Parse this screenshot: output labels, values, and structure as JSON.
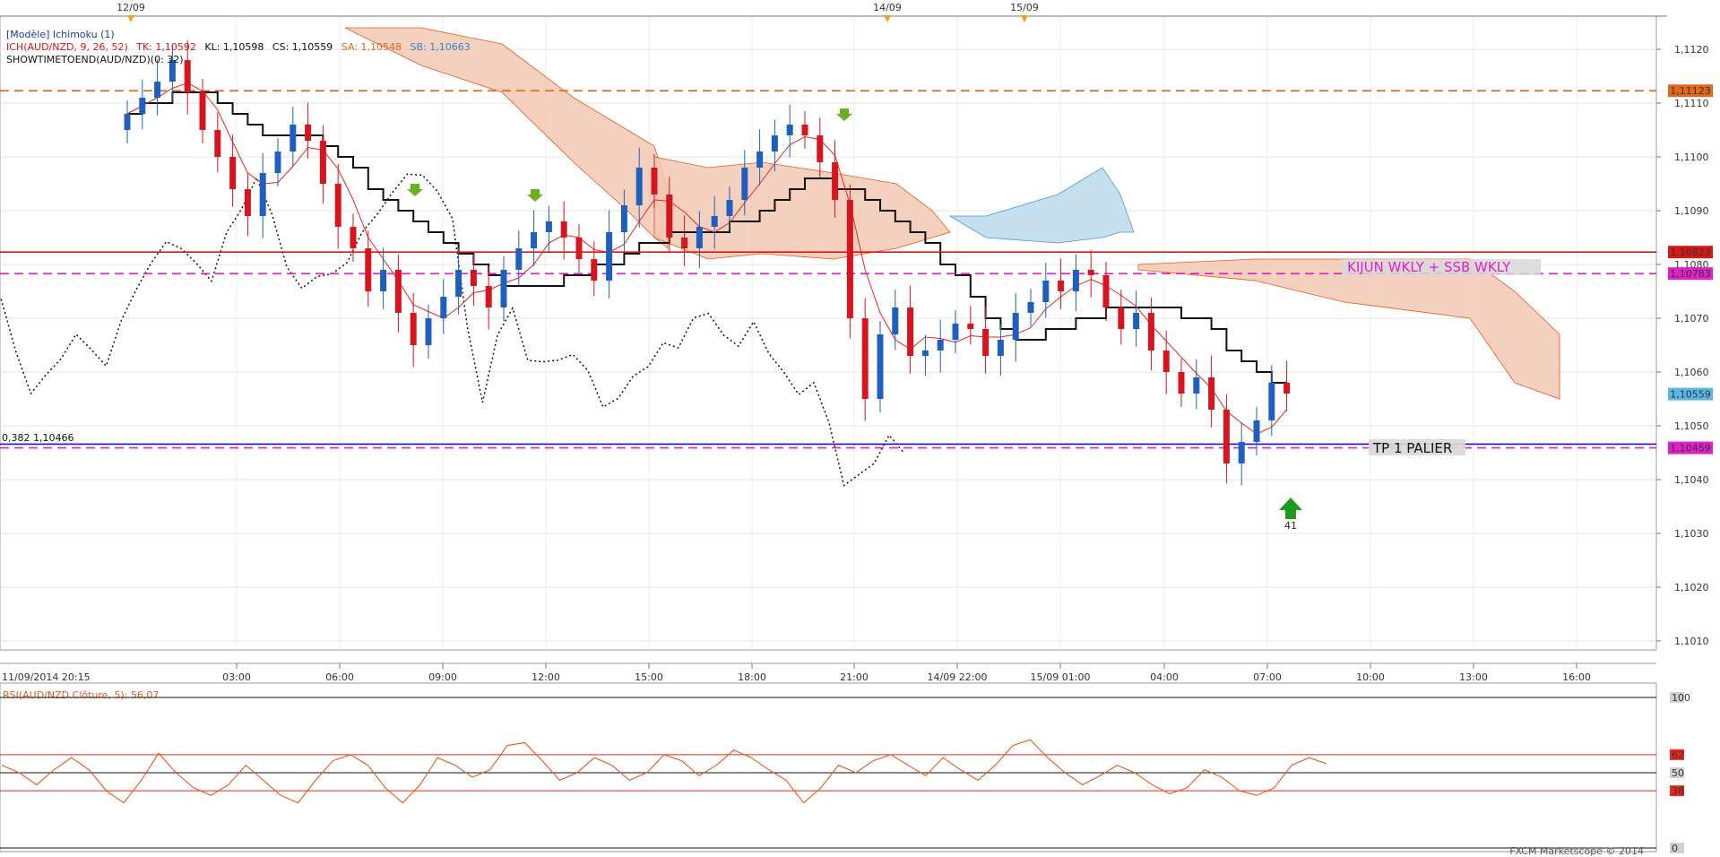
{
  "header": {
    "model": "[Modèle] Ichimoku (1)",
    "ich_line1": "ICH(AUD/NZD, 9, 26, 52)",
    "tk": "TK: 1,10592",
    "kl": "KL: 1,10598",
    "cs": "CS: 1,10559",
    "sa": "SA: 1,10548",
    "sb": "SB: 1,10663",
    "showtime": "SHOWTIMETOEND(AUD/NZD)(0: 32)"
  },
  "date_markers": [
    "12/09",
    "14/09",
    "15/09"
  ],
  "price_axis": {
    "ticks": [
      "1,1120",
      "1,1110",
      "1,1100",
      "1,1090",
      "1,1080",
      "1,1070",
      "1,1060",
      "1,1050",
      "1,1040",
      "1,1030",
      "1,1020",
      "1,1010"
    ],
    "badges": [
      {
        "label": "1,11123",
        "color": "#e06a1a"
      },
      {
        "label": "1,10823",
        "color": "#d81818"
      },
      {
        "label": "1,10783",
        "color": "#e020c8"
      },
      {
        "label": "1,10559",
        "color": "#5ab8e8"
      },
      {
        "label": "1,10459",
        "color": "#e020c8"
      }
    ]
  },
  "time_axis": [
    "11/09/2014 20:15",
    "03:00",
    "06:00",
    "09:00",
    "12:00",
    "15:00",
    "18:00",
    "21:00",
    "14/09 22:00",
    "15/09 01:00",
    "04:00",
    "07:00",
    "10:00",
    "13:00",
    "16:00"
  ],
  "annotations": {
    "fib": "0,382  1,10466",
    "kijun": "KIJUN WKLY + SSB WKLY",
    "tp": "TP 1 PALIER",
    "signal": "41"
  },
  "rsi": {
    "label": "RSI(AUD/NZD.Clôture, 5): 56,07",
    "ticks": [
      "100",
      "62",
      "50",
      "38",
      "0"
    ]
  },
  "footer": "FXCM Marketscope © 2014",
  "colors": {
    "bull": "#1f5fbf",
    "bear": "#d8141e",
    "tenkan": "#e8261c",
    "kijun": "#111111",
    "cloud_bear": "#f2c8b4",
    "cloud_bull": "#c0dcec",
    "rsi": "#e8581c"
  },
  "chart_data": {
    "type": "candlestick",
    "instrument": "AUD/NZD",
    "x_range": [
      "11/09/2014 20:15",
      "15/09/2014 16:00"
    ],
    "ylim": [
      1.1005,
      1.1125
    ],
    "levels": [
      {
        "value": 1.11123,
        "style": "dashed",
        "color": "#e06a1a"
      },
      {
        "value": 1.10823,
        "style": "solid",
        "color": "#d81818"
      },
      {
        "value": 1.10783,
        "style": "dashed",
        "color": "#e020c8"
      },
      {
        "value": 1.10466,
        "style": "solid",
        "color": "#1515c8"
      },
      {
        "value": 1.10459,
        "style": "dashed",
        "color": "#e020c8"
      }
    ],
    "candles_close": [
      1.1108,
      1.1111,
      1.1114,
      1.1118,
      1.1112,
      1.1105,
      1.11,
      1.1094,
      1.1089,
      1.1097,
      1.1101,
      1.1106,
      1.1103,
      1.1095,
      1.1087,
      1.1083,
      1.1075,
      1.1079,
      1.1071,
      1.1065,
      1.107,
      1.1074,
      1.1079,
      1.1076,
      1.1072,
      1.1079,
      1.1083,
      1.1086,
      1.1088,
      1.1085,
      1.1081,
      1.1077,
      1.1086,
      1.1091,
      1.1098,
      1.1093,
      1.1085,
      1.1083,
      1.1087,
      1.1089,
      1.1092,
      1.1098,
      1.1101,
      1.1104,
      1.1106,
      1.1104,
      1.1099,
      1.1092,
      1.107,
      1.1055,
      1.1067,
      1.1072,
      1.1063,
      1.1064,
      1.1066,
      1.1069,
      1.1068,
      1.1063,
      1.1066,
      1.1071,
      1.1073,
      1.1077,
      1.1075,
      1.1079,
      1.1078,
      1.1072,
      1.1068,
      1.1071,
      1.1064,
      1.106,
      1.1056,
      1.1059,
      1.1053,
      1.1043,
      1.1047,
      1.1051,
      1.1058,
      1.1056
    ],
    "rsi_period": 5,
    "rsi_levels": [
      62,
      50,
      38
    ],
    "rsi_last": 56.07,
    "rsi_values": [
      55,
      50,
      42,
      52,
      60,
      52,
      38,
      30,
      45,
      63,
      50,
      40,
      35,
      42,
      55,
      45,
      35,
      30,
      45,
      58,
      62,
      55,
      40,
      30,
      42,
      60,
      55,
      47,
      52,
      68,
      70,
      58,
      45,
      50,
      60,
      55,
      45,
      50,
      62,
      58,
      48,
      55,
      65,
      60,
      52,
      45,
      30,
      40,
      55,
      50,
      58,
      62,
      55,
      48,
      60,
      52,
      45,
      55,
      68,
      72,
      60,
      50,
      42,
      48,
      55,
      50,
      42,
      36,
      40,
      52,
      47,
      38,
      35,
      40,
      55,
      60,
      56
    ]
  }
}
